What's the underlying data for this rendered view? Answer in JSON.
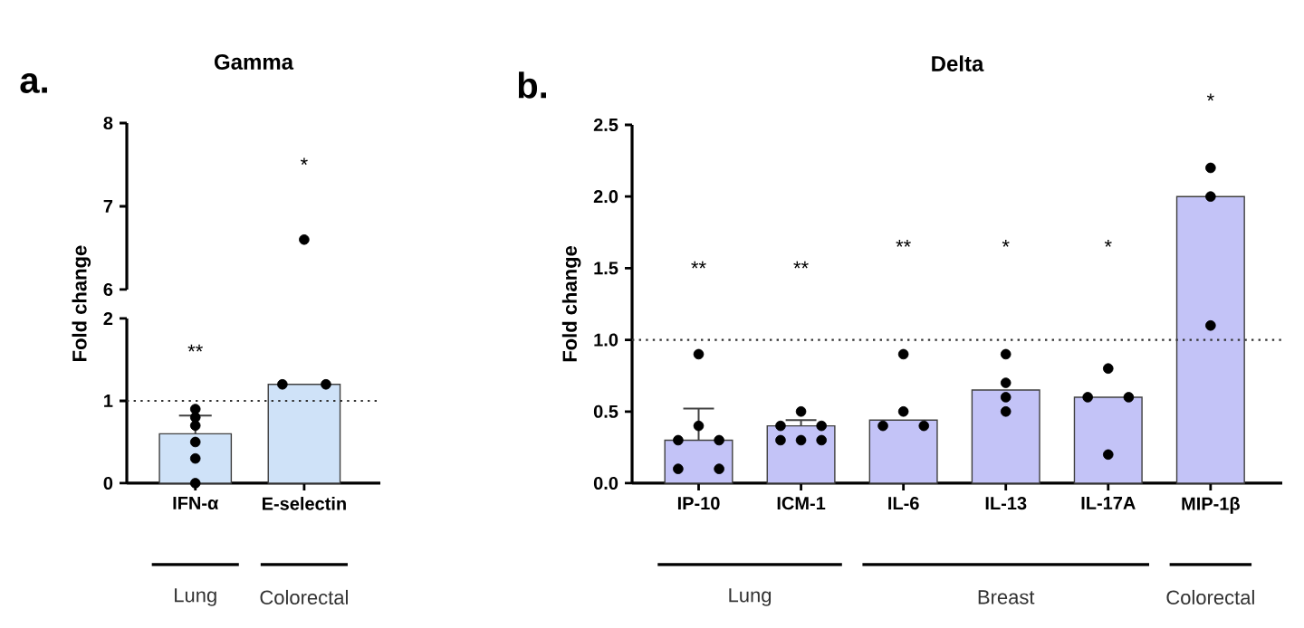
{
  "chart_data": [
    {
      "type": "scatter",
      "title": "Gamma",
      "categories": [
        "IFN-α",
        "E-selectin"
      ],
      "ylim": [
        6,
        8
      ],
      "yticks": [
        6,
        7,
        8
      ],
      "tick_labels": "y",
      "marker": "circle",
      "series": [
        {
          "x": [
            "E-selectin"
          ],
          "values": [
            6.6
          ],
          "color": "#000000"
        }
      ],
      "annotations": [
        "a.",
        "*"
      ]
    },
    {
      "type": "bar",
      "ylabel": "Fold change",
      "categories": [
        "IFN-α",
        "E-selectin"
      ],
      "ylim": [
        0,
        2
      ],
      "yticks": [
        0,
        1,
        2
      ],
      "marker": "circle",
      "series": [
        {
          "values": [
            0.6,
            1.2
          ],
          "color": "#cfe2f8",
          "errors": [
            [
              0.6,
              0.82
            ],
            null
          ]
        },
        {
          "type": "scatter",
          "x": [
            "IFN-α",
            "IFN-α",
            "IFN-α",
            "IFN-α",
            "IFN-α",
            "IFN-α",
            "E-selectin",
            "E-selectin"
          ],
          "values": [
            0.7,
            0.9,
            0.8,
            0.5,
            0.3,
            0.0,
            1.2,
            1.2
          ],
          "color": "#000000"
        }
      ],
      "ref_lines": [
        {
          "axis": "y",
          "value": 1,
          "line_style": "dotted"
        }
      ],
      "annotations": [
        "**",
        "Lung",
        "Colorectal"
      ]
    },
    {
      "type": "bar",
      "title": "Delta",
      "ylabel": "Fold change",
      "categories": [
        "IP-10",
        "ICM-1",
        "IL-6",
        "IL-13",
        "IL-17A",
        "MIP-1β"
      ],
      "ylim": [
        0,
        2.5
      ],
      "yticks": [
        {
          "value": 0,
          "label": "0.0"
        },
        {
          "value": 0.5,
          "label": "0.5"
        },
        {
          "value": 1,
          "label": "1.0"
        },
        {
          "value": 1.5,
          "label": "1.5"
        },
        {
          "value": 2,
          "label": "2.0"
        },
        {
          "value": 2.5,
          "label": "2.5"
        }
      ],
      "marker": "circle",
      "series": [
        {
          "values": [
            0.3,
            0.4,
            0.44,
            0.65,
            0.6,
            2.0
          ],
          "color": "#c3c3f7",
          "errors": [
            [
              0.3,
              0.52
            ],
            [
              0.4,
              0.44
            ],
            null,
            null,
            null,
            null
          ]
        },
        {
          "type": "scatter",
          "x": [
            "IP-10",
            "IP-10",
            "IP-10",
            "IP-10",
            "IP-10",
            "IP-10",
            "ICM-1",
            "ICM-1",
            "ICM-1",
            "ICM-1",
            "ICM-1",
            "ICM-1",
            "IL-6",
            "IL-6",
            "IL-6",
            "IL-6",
            "IL-13",
            "IL-13",
            "IL-13",
            "IL-13",
            "IL-17A",
            "IL-17A",
            "IL-17A",
            "IL-17A",
            "MIP-1β",
            "MIP-1β",
            "MIP-1β"
          ],
          "values": [
            0.9,
            0.4,
            0.3,
            0.3,
            0.1,
            0.1,
            0.5,
            0.4,
            0.4,
            0.3,
            0.3,
            0.3,
            0.9,
            0.5,
            0.4,
            0.4,
            0.9,
            0.7,
            0.6,
            0.5,
            0.8,
            0.6,
            0.6,
            0.2,
            2.2,
            2.0,
            1.1
          ],
          "color": "#000000"
        }
      ],
      "ref_lines": [
        {
          "axis": "y",
          "value": 1,
          "line_style": "dotted"
        }
      ],
      "annotations": [
        "b.",
        "**",
        "**",
        "**",
        "*",
        "*",
        "*",
        "Lung",
        "Breast",
        "Colorectal"
      ]
    }
  ]
}
